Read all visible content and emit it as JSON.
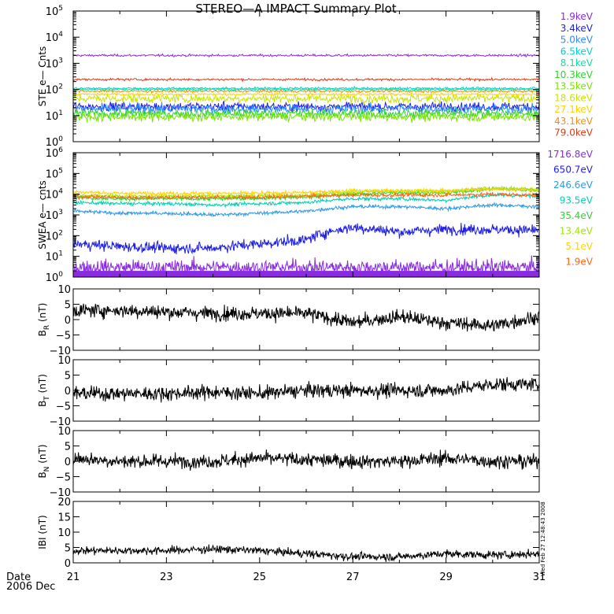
{
  "title": "STEREO—A IMPACT Summary Plot",
  "timestamp": "Wed Feb 27 12:48:43 2008",
  "date_label": "Date",
  "date_value": "2006 Dec",
  "x_ticks": [
    "21",
    "23",
    "25",
    "27",
    "29",
    "31"
  ],
  "colors": {
    "ste": [
      "#8a2be2",
      "#1e1ee6",
      "#2d8cff",
      "#00d2d2",
      "#00e6a0",
      "#32d232",
      "#78e600",
      "#c8e600",
      "#ffd200",
      "#ff8c00",
      "#e03c14"
    ],
    "swea": [
      "#8a2be2",
      "#1e1ee6",
      "#2d9be6",
      "#00d2b4",
      "#32d232",
      "#a0e600",
      "#ffd200",
      "#ff6414"
    ]
  },
  "chart_data": [
    {
      "type": "line",
      "panel": "ste",
      "ylabel": "STE e— Cnts",
      "yscale": "log",
      "ylim": [
        1,
        100000
      ],
      "xlim": [
        21,
        31
      ],
      "y_tick_exponents": [
        "0",
        "1",
        "2",
        "3",
        "4",
        "5"
      ],
      "legend_location": "right",
      "series": [
        {
          "name": "1.9keV",
          "level": 2000
        },
        {
          "name": "3.4keV",
          "level": 22
        },
        {
          "name": "5.0keV",
          "level": 18
        },
        {
          "name": "6.5keV",
          "level": 110
        },
        {
          "name": "8.1keV",
          "level": 100
        },
        {
          "name": "10.3keV",
          "level": 12
        },
        {
          "name": "13.5keV",
          "level": 9
        },
        {
          "name": "18.6keV",
          "level": 45
        },
        {
          "name": "27.1keV",
          "level": 65
        },
        {
          "name": "43.1keV",
          "level": 85
        },
        {
          "name": "79.0keV",
          "level": 240
        }
      ]
    },
    {
      "type": "line",
      "panel": "swea",
      "ylabel": "SWEA e— cnts",
      "yscale": "log",
      "ylim": [
        1,
        1000000
      ],
      "xlim": [
        21,
        31
      ],
      "y_tick_exponents": [
        "0",
        "1",
        "2",
        "3",
        "4",
        "5",
        "6"
      ],
      "legend_location": "right",
      "series": [
        {
          "name": "1716.8eV",
          "x": [
            21,
            22,
            23,
            24,
            25,
            26,
            27,
            28,
            29,
            30,
            31
          ],
          "y": [
            3,
            3,
            3,
            3,
            3,
            3,
            3,
            3,
            3,
            3,
            3
          ]
        },
        {
          "name": "650.7eV",
          "x": [
            21,
            22,
            23,
            24,
            25,
            26,
            27,
            28,
            29,
            30,
            31
          ],
          "y": [
            40,
            30,
            25,
            25,
            40,
            60,
            250,
            150,
            200,
            200,
            180
          ]
        },
        {
          "name": "246.6eV",
          "x": [
            21,
            22,
            23,
            24,
            25,
            26,
            27,
            28,
            29,
            30,
            31
          ],
          "y": [
            1500,
            1200,
            1200,
            1000,
            1200,
            1500,
            2500,
            2500,
            2000,
            3000,
            2500
          ]
        },
        {
          "name": "93.5eV",
          "x": [
            21,
            22,
            23,
            24,
            25,
            26,
            27,
            28,
            29,
            30,
            31
          ],
          "y": [
            4000,
            3500,
            3500,
            3000,
            3500,
            4000,
            6000,
            6000,
            5000,
            9000,
            8000
          ]
        },
        {
          "name": "35.4eV",
          "x": [
            21,
            22,
            23,
            24,
            25,
            26,
            27,
            28,
            29,
            30,
            31
          ],
          "y": [
            7000,
            6000,
            6000,
            6000,
            6500,
            7000,
            10000,
            12000,
            11000,
            18000,
            15000
          ]
        },
        {
          "name": "13.4eV",
          "x": [
            21,
            22,
            23,
            24,
            25,
            26,
            27,
            28,
            29,
            30,
            31
          ],
          "y": [
            9000,
            8000,
            8000,
            8000,
            8500,
            9000,
            13000,
            14000,
            13000,
            20000,
            18000
          ]
        },
        {
          "name": "5.1eV",
          "x": [
            21,
            22,
            23,
            24,
            25,
            26,
            27,
            28,
            29,
            30,
            31
          ],
          "y": [
            13000,
            11000,
            11000,
            11000,
            11000,
            12000,
            15000,
            15000,
            15000,
            18000,
            15000
          ]
        },
        {
          "name": "1.9eV",
          "x": [
            21,
            22,
            23,
            24,
            25,
            26,
            27,
            28,
            29,
            30,
            31
          ],
          "y": [
            8000,
            7000,
            7000,
            7000,
            7000,
            8000,
            9000,
            9000,
            9000,
            10000,
            9000
          ]
        }
      ]
    },
    {
      "type": "line",
      "panel": "br",
      "ylabel": "B",
      "ylabel_sub": "R",
      "ylabel_unit": "(nT)",
      "ylim": [
        -10,
        10
      ],
      "xlim": [
        21,
        31
      ],
      "y_ticks": [
        "−10",
        "−5",
        "0",
        "5",
        "10"
      ],
      "series": [
        {
          "x": [
            21,
            22,
            23,
            24,
            25,
            26,
            27,
            28,
            29,
            30,
            31
          ],
          "y": [
            3,
            3,
            2.5,
            2,
            2,
            2,
            -1,
            1,
            -1,
            -2,
            1
          ]
        }
      ]
    },
    {
      "type": "line",
      "panel": "bt",
      "ylabel": "B",
      "ylabel_sub": "T",
      "ylabel_unit": "(nT)",
      "ylim": [
        -10,
        10
      ],
      "xlim": [
        21,
        31
      ],
      "y_ticks": [
        "−10",
        "−5",
        "0",
        "5",
        "10"
      ],
      "series": [
        {
          "x": [
            21,
            22,
            23,
            24,
            25,
            26,
            27,
            28,
            29,
            30,
            31
          ],
          "y": [
            -1,
            -1,
            -1,
            -0.5,
            -1,
            0,
            0,
            0,
            0,
            2,
            2
          ]
        }
      ]
    },
    {
      "type": "line",
      "panel": "bn",
      "ylabel": "B",
      "ylabel_sub": "N",
      "ylabel_unit": "(nT)",
      "ylim": [
        -10,
        10
      ],
      "xlim": [
        21,
        31
      ],
      "y_ticks": [
        "−10",
        "−5",
        "0",
        "5",
        "10"
      ],
      "series": [
        {
          "x": [
            21,
            22,
            23,
            24,
            25,
            26,
            27,
            28,
            29,
            30,
            31
          ],
          "y": [
            1,
            0,
            0,
            0,
            1,
            0.5,
            0,
            0,
            1,
            0,
            0
          ]
        }
      ]
    },
    {
      "type": "line",
      "panel": "bmag",
      "ylabel": "IBI (nT)",
      "ylim": [
        0,
        20
      ],
      "xlim": [
        21,
        31
      ],
      "y_ticks": [
        "0",
        "5",
        "10",
        "15",
        "20"
      ],
      "series": [
        {
          "x": [
            21,
            22,
            23,
            24,
            25,
            26,
            27,
            28,
            29,
            30,
            31
          ],
          "y": [
            4,
            4,
            4,
            4.5,
            4,
            3,
            2,
            2,
            3,
            2.5,
            3
          ]
        }
      ]
    }
  ]
}
